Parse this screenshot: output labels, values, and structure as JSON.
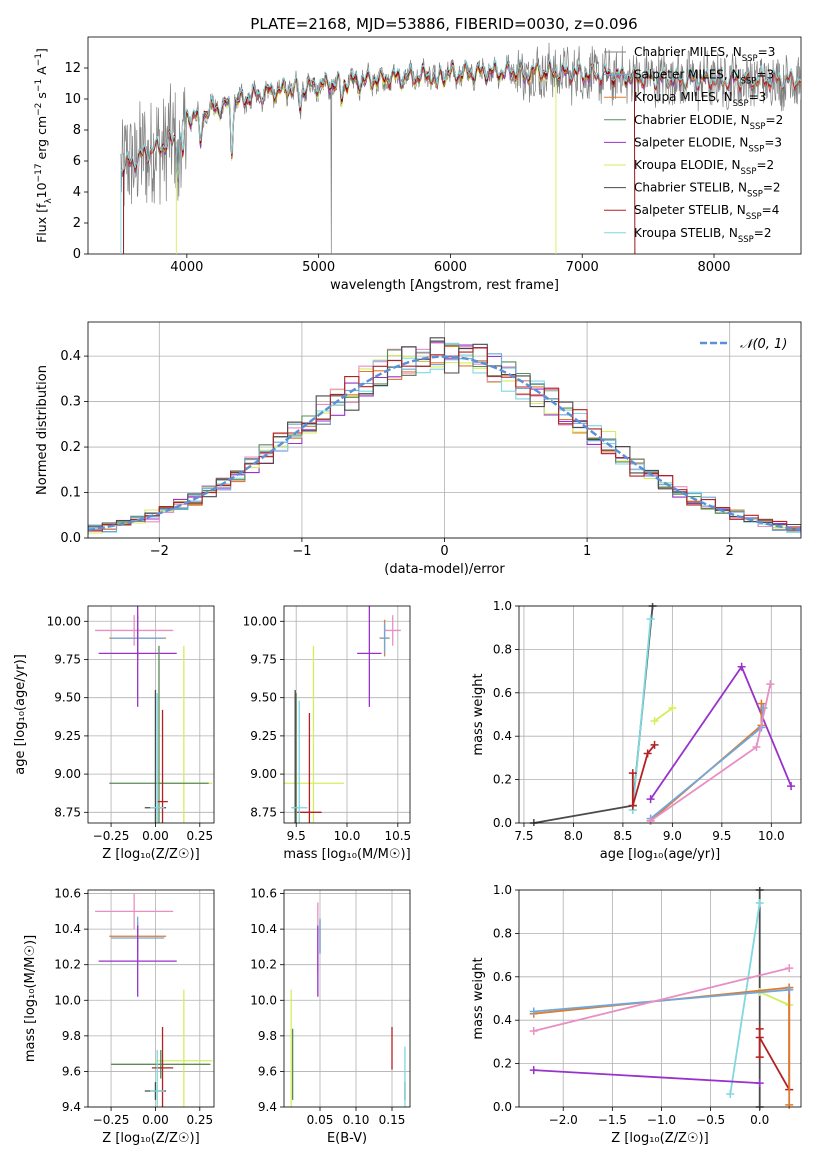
{
  "figure_title": "PLATE=2168, MJD=53886, FIBERID=0030, z=0.096",
  "colors": {
    "Chabrier MILES": "#6fa8dc",
    "Salpeter MILES": "#8b0000",
    "Kroupa MILES": "#e07b2a",
    "Chabrier ELODIE": "#5b8a5b",
    "Salpeter ELODIE": "#9932cc",
    "Kroupa ELODIE": "#d4ee5e",
    "Chabrier STELIB": "#4a4a4a",
    "Salpeter STELIB": "#b22222",
    "Kroupa STELIB": "#7fd8e0",
    "Salpeter MILES bar": "#e88fc4",
    "gaussian": "#5b8fd6",
    "data": "#808080"
  },
  "chart_data": [
    {
      "id": "spectrum",
      "type": "line",
      "xlabel": "wavelength [Angstrom, rest frame]",
      "ylabel_parts": [
        "Flux [f",
        "λ",
        "10",
        "−17",
        " erg cm",
        "−2",
        " s",
        "−1",
        " A",
        "−1",
        "]"
      ],
      "xlim": [
        3250,
        8660
      ],
      "ylim": [
        0,
        14
      ],
      "xticks": [
        "4000",
        "5000",
        "6000",
        "7000",
        "8000"
      ],
      "yticks": [
        "0",
        "2",
        "4",
        "6",
        "8",
        "10",
        "12"
      ],
      "legend_position": "right",
      "legend": [
        {
          "label": "Chabrier MILES, N",
          "sub": "SSP",
          "suffix": "=3",
          "color": "#808080"
        },
        {
          "label": "Salpeter MILES, N",
          "sub": "SSP",
          "suffix": "=3",
          "color": "#6fa8dc"
        },
        {
          "label": "Kroupa MILES, N",
          "sub": "SSP",
          "suffix": "=3",
          "color": "#e07b2a"
        },
        {
          "label": "Chabrier ELODIE, N",
          "sub": "SSP",
          "suffix": "=2",
          "color": "#5b8a5b"
        },
        {
          "label": "Salpeter ELODIE, N",
          "sub": "SSP",
          "suffix": "=3",
          "color": "#9932cc"
        },
        {
          "label": "Kroupa ELODIE, N",
          "sub": "SSP",
          "suffix": "=2",
          "color": "#d4ee5e"
        },
        {
          "label": "Chabrier STELIB, N",
          "sub": "SSP",
          "suffix": "=2",
          "color": "#4a4a4a"
        },
        {
          "label": "Salpeter STELIB, N",
          "sub": "SSP",
          "suffix": "=4",
          "color": "#b22222"
        },
        {
          "label": "Kroupa STELIB, N",
          "sub": "SSP",
          "suffix": "=2",
          "color": "#7fd8e0"
        }
      ],
      "continuum": [
        [
          3500,
          5.5
        ],
        [
          3700,
          6.5
        ],
        [
          3900,
          7.3
        ],
        [
          4000,
          8.8
        ],
        [
          4300,
          9.6
        ],
        [
          4600,
          10.4
        ],
        [
          5000,
          10.9
        ],
        [
          5500,
          11.3
        ],
        [
          6000,
          11.6
        ],
        [
          6500,
          11.8
        ],
        [
          7000,
          11.6
        ],
        [
          7500,
          11.3
        ],
        [
          8000,
          11.2
        ],
        [
          8500,
          11.2
        ]
      ],
      "dips": [
        [
          3934,
          2.5
        ],
        [
          3969,
          2.2
        ],
        [
          4102,
          2.3
        ],
        [
          4340,
          3.0
        ],
        [
          4861,
          1.5
        ],
        [
          5175,
          1.2
        ],
        [
          5895,
          1.0
        ],
        [
          6563,
          0.8
        ]
      ],
      "edges": [
        {
          "series": "Kroupa STELIB",
          "x_start": 3500,
          "x_end": 8660
        },
        {
          "series": "Salpeter MILES",
          "x_start": 3520,
          "x_end": 7400
        },
        {
          "series": "Kroupa ELODIE",
          "x_start": 3920,
          "x_end": 6800
        }
      ]
    },
    {
      "id": "residuals",
      "type": "histogram",
      "xlabel": "(data-model)/error",
      "ylabel": "Normed distribution",
      "xlim": [
        -2.5,
        2.5
      ],
      "ylim": [
        0,
        0.475
      ],
      "xticks": [
        "−2",
        "−1",
        "0",
        "1",
        "2"
      ],
      "yticks": [
        "0.0",
        "0.1",
        "0.2",
        "0.3",
        "0.4"
      ],
      "bin_width": 0.1,
      "legend_position": "upper right",
      "legend_label": "𝒩(0, 1)",
      "series_colors": [
        "#9932cc",
        "#e07b2a",
        "#d4ee5e",
        "#e88fc4",
        "#7fd8e0",
        "#5b8a5b",
        "#6fa8dc",
        "#4a4a4a",
        "#b22222"
      ]
    },
    {
      "id": "age-vs-Z",
      "type": "errorbar",
      "xlabel": "Z [log₁₀(Z/Z☉)]",
      "ylabel": "age  [log₁₀(age/yr)]",
      "xlim": [
        -0.38,
        0.33
      ],
      "ylim": [
        8.68,
        10.1
      ],
      "xticks": [
        [
          "−0.25",
          -0.25
        ],
        [
          "0.00",
          0.0
        ],
        [
          "0.25",
          0.25
        ]
      ],
      "yticks": [
        [
          "8.75",
          8.75
        ],
        [
          "9.00",
          9.0
        ],
        [
          "9.25",
          9.25
        ],
        [
          "9.50",
          9.5
        ],
        [
          "9.75",
          9.75
        ],
        [
          "10.00",
          10.0
        ]
      ],
      "points": [
        {
          "color": "#e88fc4",
          "x": -0.12,
          "y": 9.94,
          "xerr": 0.22,
          "yerr": 0.1
        },
        {
          "color": "#e07b2a",
          "x": -0.1,
          "y": 9.89,
          "xerr": 0.16,
          "yerr": 0.15
        },
        {
          "color": "#6fa8dc",
          "x": -0.1,
          "y": 9.89,
          "xerr": 0.15,
          "yerr": 0.12
        },
        {
          "color": "#9932cc",
          "x": -0.1,
          "y": 9.79,
          "xerr": 0.22,
          "yerr": 0.35
        },
        {
          "color": "#d4ee5e",
          "x": 0.16,
          "y": 8.94,
          "xerr": 0.16,
          "yerr": 0.9
        },
        {
          "color": "#5b8a5b",
          "x": 0.02,
          "y": 8.94,
          "xerr": 0.28,
          "yerr": 0.9
        },
        {
          "color": "#4a4a4a",
          "x": 0.0,
          "y": 8.78,
          "xerr": 0.06,
          "yerr": 0.77
        },
        {
          "color": "#b22222",
          "x": 0.04,
          "y": 8.82,
          "xerr": 0.03,
          "yerr": 0.6
        },
        {
          "color": "#7fd8e0",
          "x": 0.01,
          "y": 8.78,
          "xerr": 0.04,
          "yerr": 0.75
        }
      ]
    },
    {
      "id": "age-vs-mass",
      "type": "errorbar",
      "xlabel": "mass [log₁₀(M/M☉)]",
      "ylabel": "",
      "xlim": [
        9.38,
        10.62
      ],
      "ylim": [
        8.68,
        10.1
      ],
      "xticks": [
        [
          "9.5",
          9.5
        ],
        [
          "10.0",
          10.0
        ],
        [
          "10.5",
          10.5
        ]
      ],
      "yticks": [
        [
          "8.75",
          8.75
        ],
        [
          "9.00",
          9.0
        ],
        [
          "9.25",
          9.25
        ],
        [
          "9.50",
          9.5
        ],
        [
          "9.75",
          9.75
        ],
        [
          "10.00",
          10.0
        ]
      ],
      "points": [
        {
          "color": "#e88fc4",
          "x": 10.45,
          "y": 9.94,
          "xerr": 0.08,
          "yerr": 0.1
        },
        {
          "color": "#e07b2a",
          "x": 10.37,
          "y": 9.89,
          "xerr": 0.05,
          "yerr": 0.12
        },
        {
          "color": "#6fa8dc",
          "x": 10.37,
          "y": 9.89,
          "xerr": 0.04,
          "yerr": 0.1
        },
        {
          "color": "#9932cc",
          "x": 10.22,
          "y": 9.79,
          "xerr": 0.12,
          "yerr": 0.35
        },
        {
          "color": "#d4ee5e",
          "x": 9.67,
          "y": 8.94,
          "xerr": 0.3,
          "yerr": 0.9
        },
        {
          "color": "#5b8a5b",
          "x": 9.5,
          "y": 8.78,
          "xerr": 0.02,
          "yerr": 0.75
        },
        {
          "color": "#4a4a4a",
          "x": 9.49,
          "y": 8.78,
          "xerr": 0.02,
          "yerr": 0.77
        },
        {
          "color": "#b22222",
          "x": 9.63,
          "y": 8.75,
          "xerr": 0.12,
          "yerr": 0.65
        },
        {
          "color": "#7fd8e0",
          "x": 9.53,
          "y": 8.78,
          "xerr": 0.08,
          "yerr": 0.7
        }
      ]
    },
    {
      "id": "weight-vs-age",
      "type": "line",
      "xlabel": "age  [log₁₀(age/yr)]",
      "ylabel": "mass weight",
      "xlim": [
        7.45,
        10.3
      ],
      "ylim": [
        0.0,
        1.0
      ],
      "xticks": [
        [
          "7.5",
          7.5
        ],
        [
          "8.0",
          8.0
        ],
        [
          "8.5",
          8.5
        ],
        [
          "9.0",
          9.0
        ],
        [
          "9.5",
          9.5
        ],
        [
          "10.0",
          10.0
        ]
      ],
      "yticks": [
        [
          "0.0",
          0.0
        ],
        [
          "0.2",
          0.2
        ],
        [
          "0.4",
          0.4
        ],
        [
          "0.6",
          0.6
        ],
        [
          "0.8",
          0.8
        ],
        [
          "1.0",
          1.0
        ]
      ],
      "series": [
        {
          "color": "#4a4a4a",
          "points": [
            [
              7.6,
              0.0
            ],
            [
              8.6,
              0.08
            ],
            [
              8.8,
              1.0
            ]
          ]
        },
        {
          "color": "#7fd8e0",
          "points": [
            [
              8.6,
              0.06
            ],
            [
              8.78,
              0.94
            ]
          ]
        },
        {
          "color": "#d4ee5e",
          "points": [
            [
              8.82,
              0.47
            ],
            [
              9.0,
              0.53
            ]
          ]
        },
        {
          "color": "#b22222",
          "points": [
            [
              8.6,
              0.23
            ],
            [
              8.6,
              0.08
            ],
            [
              8.75,
              0.32
            ],
            [
              8.82,
              0.36
            ]
          ]
        },
        {
          "color": "#9932cc",
          "points": [
            [
              8.78,
              0.11
            ],
            [
              9.7,
              0.72
            ],
            [
              10.2,
              0.17
            ]
          ]
        },
        {
          "color": "#e07b2a",
          "points": [
            [
              8.78,
              0.01
            ],
            [
              9.9,
              0.45
            ],
            [
              9.9,
              0.55
            ]
          ]
        },
        {
          "color": "#6fa8dc",
          "points": [
            [
              8.78,
              0.02
            ],
            [
              9.9,
              0.44
            ],
            [
              9.92,
              0.53
            ]
          ]
        },
        {
          "color": "#e88fc4",
          "points": [
            [
              8.78,
              0.01
            ],
            [
              9.85,
              0.35
            ],
            [
              9.99,
              0.64
            ]
          ]
        }
      ]
    },
    {
      "id": "mass-vs-Z",
      "type": "errorbar",
      "xlabel": "Z [log₁₀(Z/Z☉)]",
      "ylabel": "mass [log₁₀(M/M☉)]",
      "xlim": [
        -0.38,
        0.33
      ],
      "ylim": [
        9.4,
        10.62
      ],
      "xticks": [
        [
          "−0.25",
          -0.25
        ],
        [
          "0.00",
          0.0
        ],
        [
          "0.25",
          0.25
        ]
      ],
      "yticks": [
        [
          "9.4",
          9.4
        ],
        [
          "9.6",
          9.6
        ],
        [
          "9.8",
          9.8
        ],
        [
          "10.0",
          10.0
        ],
        [
          "10.2",
          10.2
        ],
        [
          "10.4",
          10.4
        ],
        [
          "10.6",
          10.6
        ]
      ],
      "points": [
        {
          "color": "#e88fc4",
          "x": -0.12,
          "y": 10.5,
          "xerr": 0.22,
          "yerr": 0.1
        },
        {
          "color": "#e07b2a",
          "x": -0.1,
          "y": 10.36,
          "xerr": 0.16,
          "yerr": 0.08
        },
        {
          "color": "#6fa8dc",
          "x": -0.1,
          "y": 10.35,
          "xerr": 0.15,
          "yerr": 0.12
        },
        {
          "color": "#9932cc",
          "x": -0.1,
          "y": 10.22,
          "xerr": 0.22,
          "yerr": 0.2
        },
        {
          "color": "#d4ee5e",
          "x": 0.16,
          "y": 9.66,
          "xerr": 0.16,
          "yerr": 0.4
        },
        {
          "color": "#5b8a5b",
          "x": 0.03,
          "y": 9.64,
          "xerr": 0.28,
          "yerr": 0.08
        },
        {
          "color": "#4a4a4a",
          "x": 0.0,
          "y": 9.49,
          "xerr": 0.06,
          "yerr": 0.05
        },
        {
          "color": "#b22222",
          "x": 0.04,
          "y": 9.62,
          "xerr": 0.06,
          "yerr": 0.23
        },
        {
          "color": "#7fd8e0",
          "x": 0.01,
          "y": 9.49,
          "xerr": 0.04,
          "yerr": 0.23
        }
      ]
    },
    {
      "id": "mass-vs-ebv",
      "type": "errorbar",
      "xlabel": "E(B-V)",
      "ylabel": "",
      "xlim": [
        0.0,
        0.175
      ],
      "ylim": [
        9.4,
        10.62
      ],
      "xticks": [
        [
          "0.05",
          0.05
        ],
        [
          "0.10",
          0.1
        ],
        [
          "0.15",
          0.15
        ]
      ],
      "yticks": [
        [
          "9.4",
          9.4
        ],
        [
          "9.6",
          9.6
        ],
        [
          "9.8",
          9.8
        ],
        [
          "10.0",
          10.0
        ],
        [
          "10.2",
          10.2
        ],
        [
          "10.4",
          10.4
        ],
        [
          "10.6",
          10.6
        ]
      ],
      "points": [
        {
          "color": "#e88fc4",
          "x": 0.047,
          "y": 10.35,
          "xerr": 0.0,
          "yerr": 0.2
        },
        {
          "color": "#e07b2a",
          "x": 0.05,
          "y": 10.36,
          "xerr": 0.0,
          "yerr": 0.09
        },
        {
          "color": "#6fa8dc",
          "x": 0.05,
          "y": 10.36,
          "xerr": 0.0,
          "yerr": 0.1
        },
        {
          "color": "#9932cc",
          "x": 0.047,
          "y": 10.22,
          "xerr": 0.0,
          "yerr": 0.2
        },
        {
          "color": "#d4ee5e",
          "x": 0.01,
          "y": 9.66,
          "xerr": 0.0,
          "yerr": 0.4
        },
        {
          "color": "#5b8a5b",
          "x": 0.012,
          "y": 9.64,
          "xerr": 0.0,
          "yerr": 0.2
        },
        {
          "color": "#4a4a4a",
          "x": 0.168,
          "y": 9.49,
          "xerr": 0.0,
          "yerr": 0.05
        },
        {
          "color": "#b22222",
          "x": 0.15,
          "y": 9.73,
          "xerr": 0.0,
          "yerr": 0.12
        },
        {
          "color": "#7fd8e0",
          "x": 0.168,
          "y": 9.55,
          "xerr": 0.0,
          "yerr": 0.19
        }
      ]
    },
    {
      "id": "weight-vs-Z",
      "type": "line",
      "xlabel": "Z [log₁₀(Z/Z☉)]",
      "ylabel": "mass weight",
      "xlim": [
        -2.45,
        0.42
      ],
      "ylim": [
        0.0,
        1.0
      ],
      "xticks": [
        [
          "−2.0",
          -2.0
        ],
        [
          "−1.5",
          -1.5
        ],
        [
          "−1.0",
          -1.0
        ],
        [
          "−0.5",
          -0.5
        ],
        [
          "0.0",
          0.0
        ]
      ],
      "yticks": [
        [
          "0.0",
          0.0
        ],
        [
          "0.2",
          0.2
        ],
        [
          "0.4",
          0.4
        ],
        [
          "0.6",
          0.6
        ],
        [
          "0.8",
          0.8
        ],
        [
          "1.0",
          1.0
        ]
      ],
      "series": [
        {
          "color": "#4a4a4a",
          "points": [
            [
              0.0,
              0.0
            ],
            [
              0.0,
              1.0
            ]
          ]
        },
        {
          "color": "#b22222",
          "points": [
            [
              0.0,
              0.23
            ],
            [
              0.0,
              0.36
            ],
            [
              0.0,
              0.32
            ],
            [
              0.3,
              0.08
            ],
            [
              0.3,
              0.55
            ]
          ]
        },
        {
          "color": "#7fd8e0",
          "points": [
            [
              -0.3,
              0.06
            ],
            [
              0.0,
              0.94
            ]
          ]
        },
        {
          "color": "#d4ee5e",
          "points": [
            [
              0.0,
              0.53
            ],
            [
              0.3,
              0.47
            ]
          ]
        },
        {
          "color": "#9932cc",
          "points": [
            [
              -2.3,
              0.17
            ],
            [
              0.0,
              0.11
            ]
          ]
        },
        {
          "color": "#e07b2a",
          "points": [
            [
              -2.3,
              0.43
            ],
            [
              0.3,
              0.55
            ],
            [
              0.3,
              0.01
            ]
          ]
        },
        {
          "color": "#6fa8dc",
          "points": [
            [
              -2.3,
              0.44
            ],
            [
              0.3,
              0.54
            ]
          ]
        },
        {
          "color": "#e88fc4",
          "points": [
            [
              -2.3,
              0.35
            ],
            [
              0.3,
              0.64
            ]
          ]
        }
      ]
    }
  ]
}
